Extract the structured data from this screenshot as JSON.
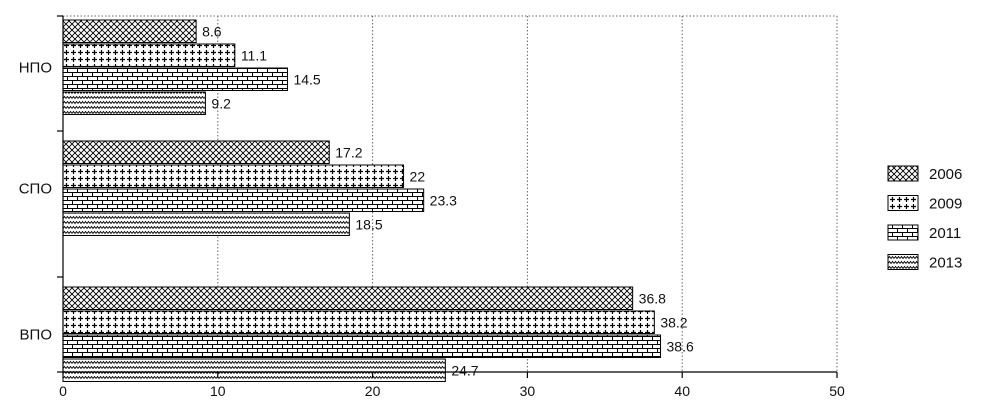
{
  "chart_data": {
    "type": "bar",
    "orientation": "horizontal",
    "categories": [
      "НПО",
      "СПО",
      "ВПО"
    ],
    "series": [
      {
        "name": "2006",
        "values": [
          8.6,
          17.2,
          36.8
        ],
        "pattern": "diamond-hatch"
      },
      {
        "name": "2009",
        "values": [
          11.1,
          22,
          38.2
        ],
        "pattern": "plus-dots"
      },
      {
        "name": "2011",
        "values": [
          14.5,
          23.3,
          38.6
        ],
        "pattern": "brick"
      },
      {
        "name": "2013",
        "values": [
          9.2,
          18.5,
          24.7
        ],
        "pattern": "zigzag"
      }
    ],
    "xlim": [
      0,
      50
    ],
    "xticks": [
      0,
      10,
      20,
      30,
      40,
      50
    ],
    "grid": "vertical-dotted",
    "legend": "right",
    "colors": {
      "stroke": "#000000",
      "background": "#ffffff",
      "grid": "#666666"
    }
  }
}
